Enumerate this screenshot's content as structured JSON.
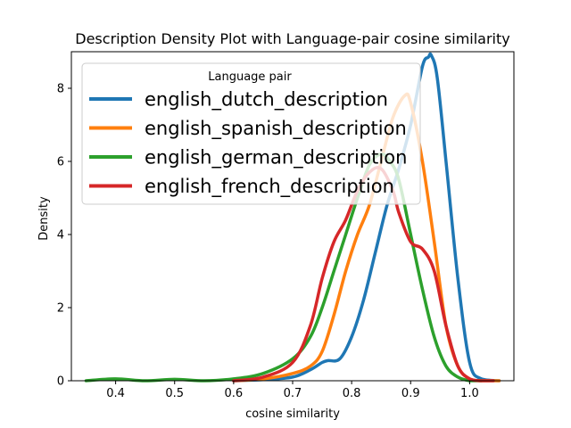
{
  "chart_data": {
    "type": "line",
    "title": "Description Density Plot with Language-pair cosine similarity",
    "xlabel": "cosine similarity",
    "ylabel": "Density",
    "xlim": [
      0.325,
      1.075
    ],
    "ylim": [
      0,
      9.0
    ],
    "xticks": [
      "0.4",
      "0.5",
      "0.6",
      "0.7",
      "0.8",
      "0.9",
      "1.0"
    ],
    "yticks": [
      "0",
      "2",
      "4",
      "6",
      "8"
    ],
    "legend": {
      "title": "Language pair",
      "position": "upper left"
    },
    "series": [
      {
        "name": "english_dutch_description",
        "color": "#1f77b4",
        "x": [
          0.6,
          0.65,
          0.7,
          0.73,
          0.75,
          0.76,
          0.78,
          0.8,
          0.82,
          0.84,
          0.86,
          0.88,
          0.9,
          0.92,
          0.93,
          0.935,
          0.945,
          0.96,
          0.98,
          1.0,
          1.02,
          1.05
        ],
        "y": [
          0.0,
          0.03,
          0.1,
          0.3,
          0.5,
          0.55,
          0.6,
          1.2,
          2.2,
          3.5,
          4.8,
          5.8,
          7.0,
          8.6,
          8.85,
          8.9,
          8.3,
          6.0,
          2.8,
          0.5,
          0.05,
          0.0
        ]
      },
      {
        "name": "english_spanish_description",
        "color": "#ff7f0e",
        "x": [
          0.6,
          0.65,
          0.7,
          0.73,
          0.75,
          0.77,
          0.79,
          0.81,
          0.83,
          0.85,
          0.87,
          0.89,
          0.9,
          0.92,
          0.94,
          0.96,
          0.98,
          1.0,
          1.02,
          1.05
        ],
        "y": [
          0.0,
          0.05,
          0.2,
          0.4,
          0.8,
          1.8,
          3.0,
          4.0,
          4.8,
          6.0,
          7.2,
          7.8,
          7.6,
          6.0,
          3.8,
          1.5,
          0.4,
          0.05,
          0.0,
          0.0
        ]
      },
      {
        "name": "english_german_description",
        "color": "#2ca02c",
        "x": [
          0.35,
          0.4,
          0.45,
          0.5,
          0.55,
          0.6,
          0.65,
          0.7,
          0.73,
          0.75,
          0.77,
          0.79,
          0.81,
          0.83,
          0.85,
          0.865,
          0.88,
          0.9,
          0.92,
          0.94,
          0.96,
          0.98,
          1.0,
          1.02
        ],
        "y": [
          0.0,
          0.05,
          0.0,
          0.04,
          0.0,
          0.05,
          0.2,
          0.6,
          1.2,
          2.0,
          3.0,
          4.0,
          5.0,
          5.9,
          6.2,
          6.0,
          5.5,
          4.0,
          2.5,
          1.2,
          0.4,
          0.1,
          0.0,
          0.0
        ]
      },
      {
        "name": "english_french_description",
        "color": "#d62728",
        "x": [
          0.6,
          0.65,
          0.7,
          0.73,
          0.75,
          0.77,
          0.79,
          0.81,
          0.83,
          0.85,
          0.87,
          0.88,
          0.9,
          0.92,
          0.94,
          0.96,
          0.98,
          1.0,
          1.02,
          1.04
        ],
        "y": [
          0.0,
          0.1,
          0.5,
          1.5,
          2.8,
          3.8,
          4.4,
          5.2,
          5.7,
          5.8,
          5.2,
          4.6,
          3.8,
          3.6,
          3.0,
          1.5,
          0.4,
          0.05,
          0.0,
          0.0
        ]
      }
    ]
  }
}
